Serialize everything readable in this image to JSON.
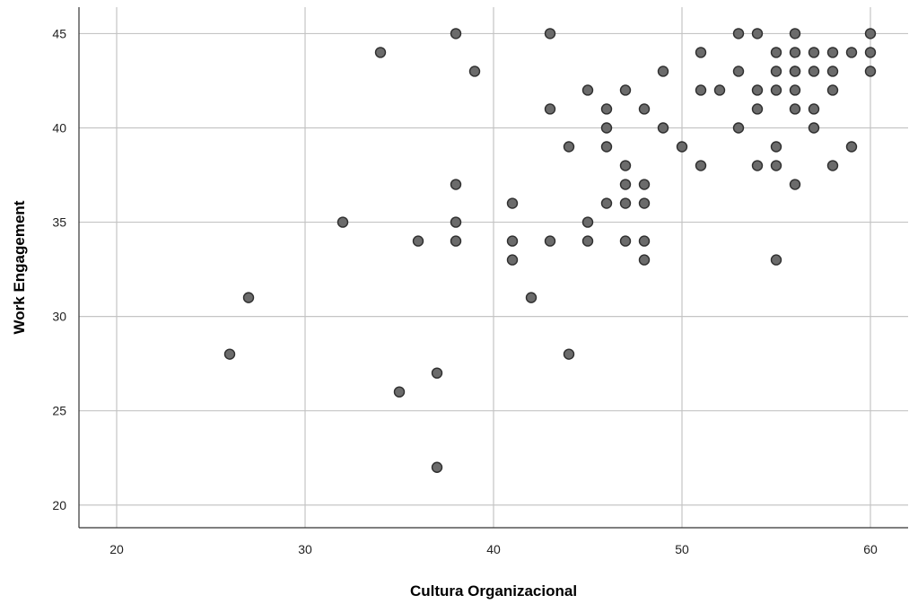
{
  "chart_data": {
    "type": "scatter",
    "title": "",
    "xlabel": "Cultura Organizacional",
    "ylabel": "Work Engagement",
    "xlim": [
      18,
      62
    ],
    "ylim": [
      18.8,
      46.4
    ],
    "xticks": [
      20,
      30,
      40,
      50,
      60
    ],
    "yticks": [
      20,
      25,
      30,
      35,
      40,
      45
    ],
    "grid": true,
    "colors": {
      "point_fill": "#6b6b6b",
      "point_stroke": "#2e2e2e",
      "grid": "#c4c4c4"
    },
    "x": [
      26,
      27,
      32,
      34,
      35,
      36,
      37,
      37,
      38,
      38,
      38,
      38,
      39,
      41,
      41,
      41,
      42,
      43,
      43,
      43,
      44,
      44,
      45,
      45,
      45,
      46,
      46,
      46,
      46,
      47,
      47,
      47,
      47,
      47,
      48,
      48,
      48,
      48,
      48,
      49,
      49,
      50,
      51,
      51,
      51,
      52,
      53,
      53,
      53,
      54,
      54,
      54,
      54,
      55,
      55,
      55,
      55,
      55,
      55,
      56,
      56,
      56,
      56,
      56,
      56,
      56,
      57,
      57,
      57,
      57,
      58,
      58,
      58,
      58,
      59,
      59,
      60,
      60,
      60
    ],
    "y": [
      28,
      31,
      35,
      44,
      26,
      34,
      22,
      27,
      34,
      35,
      37,
      45,
      43,
      33,
      34,
      36,
      31,
      34,
      41,
      45,
      28,
      39,
      34,
      35,
      42,
      36,
      39,
      40,
      41,
      34,
      36,
      37,
      38,
      42,
      33,
      34,
      36,
      37,
      41,
      40,
      43,
      39,
      38,
      42,
      44,
      42,
      40,
      43,
      45,
      38,
      41,
      42,
      45,
      33,
      38,
      39,
      42,
      43,
      44,
      37,
      41,
      42,
      43,
      44,
      45,
      43,
      40,
      41,
      44,
      43,
      38,
      42,
      43,
      44,
      39,
      44,
      43,
      44,
      45
    ]
  }
}
